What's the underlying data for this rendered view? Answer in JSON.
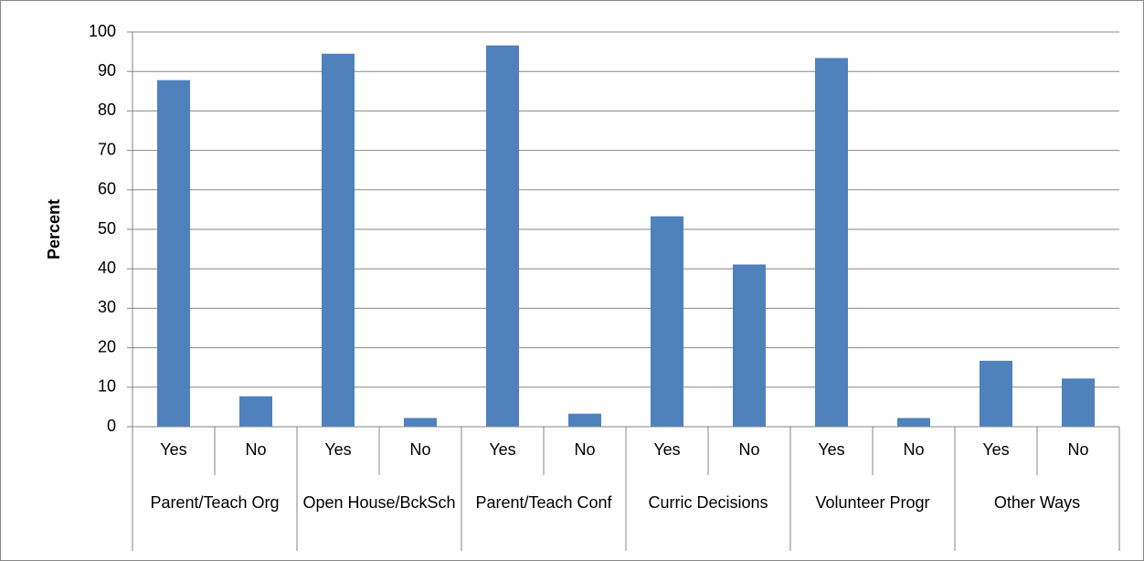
{
  "chart_data": {
    "type": "bar",
    "y_label": "Percent",
    "categories": [
      "Yes",
      "No",
      "Yes",
      "No",
      "Yes",
      "No",
      "Yes",
      "No",
      "Yes",
      "No",
      "Yes",
      "No"
    ],
    "groups": [
      "Parent/Teach Org",
      "Open House/BckSch",
      "Parent/Teach Conf",
      "Curric Decisions",
      "Volunteer Progr",
      "Other Ways"
    ],
    "values": [
      87.8,
      7.7,
      94.5,
      2.2,
      96.6,
      3.3,
      53.3,
      41.1,
      93.4,
      2.2,
      16.7,
      12.2
    ],
    "color": "#4f81bd",
    "ylim": [
      0,
      100
    ],
    "yticks": [
      0,
      10,
      20,
      30,
      40,
      50,
      60,
      70,
      80,
      90,
      100
    ],
    "grid": true
  }
}
